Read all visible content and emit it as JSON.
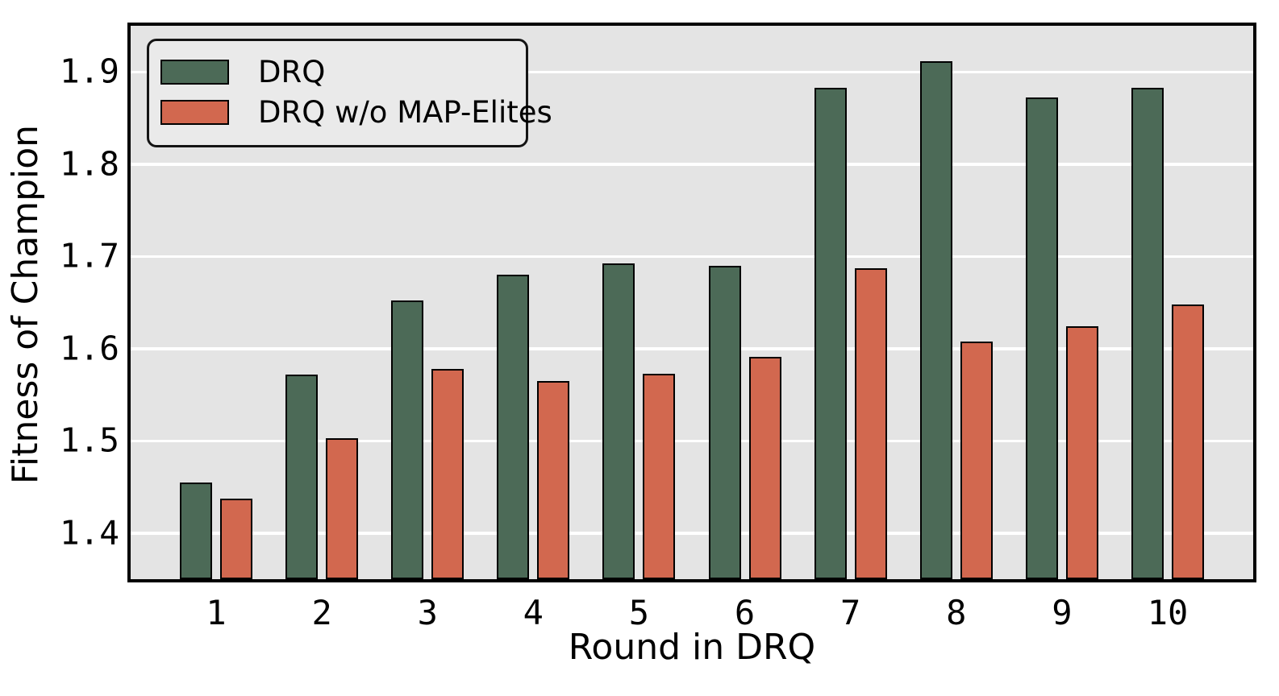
{
  "figure": {
    "background": "#ffffff",
    "plot_background": "#e4e4e4",
    "grid_color": "#ffffff",
    "frame_color": "#000000",
    "bar_edge_color": "#000000"
  },
  "chart_data": {
    "type": "bar",
    "title": "",
    "xlabel": "Round in DRQ",
    "ylabel": "Fitness of Champion",
    "categories": [
      "1",
      "2",
      "3",
      "4",
      "5",
      "6",
      "7",
      "8",
      "9",
      "10"
    ],
    "series": [
      {
        "name": "DRQ",
        "color": "#4c6a57",
        "values": [
          1.455,
          1.572,
          1.652,
          1.68,
          1.692,
          1.69,
          1.883,
          1.912,
          1.872,
          1.883
        ]
      },
      {
        "name": "DRQ w/o MAP-Elites",
        "color": "#d2684f",
        "values": [
          1.437,
          1.503,
          1.578,
          1.565,
          1.573,
          1.591,
          1.687,
          1.608,
          1.624,
          1.648
        ]
      }
    ],
    "ylim": [
      1.35,
      1.95
    ],
    "yticks": [
      1.4,
      1.5,
      1.6,
      1.7,
      1.8,
      1.9
    ],
    "ytick_labels": [
      "1.4",
      "1.5",
      "1.6",
      "1.7",
      "1.8",
      "1.9"
    ],
    "grid": "horizontal",
    "legend_position": "upper-left"
  }
}
